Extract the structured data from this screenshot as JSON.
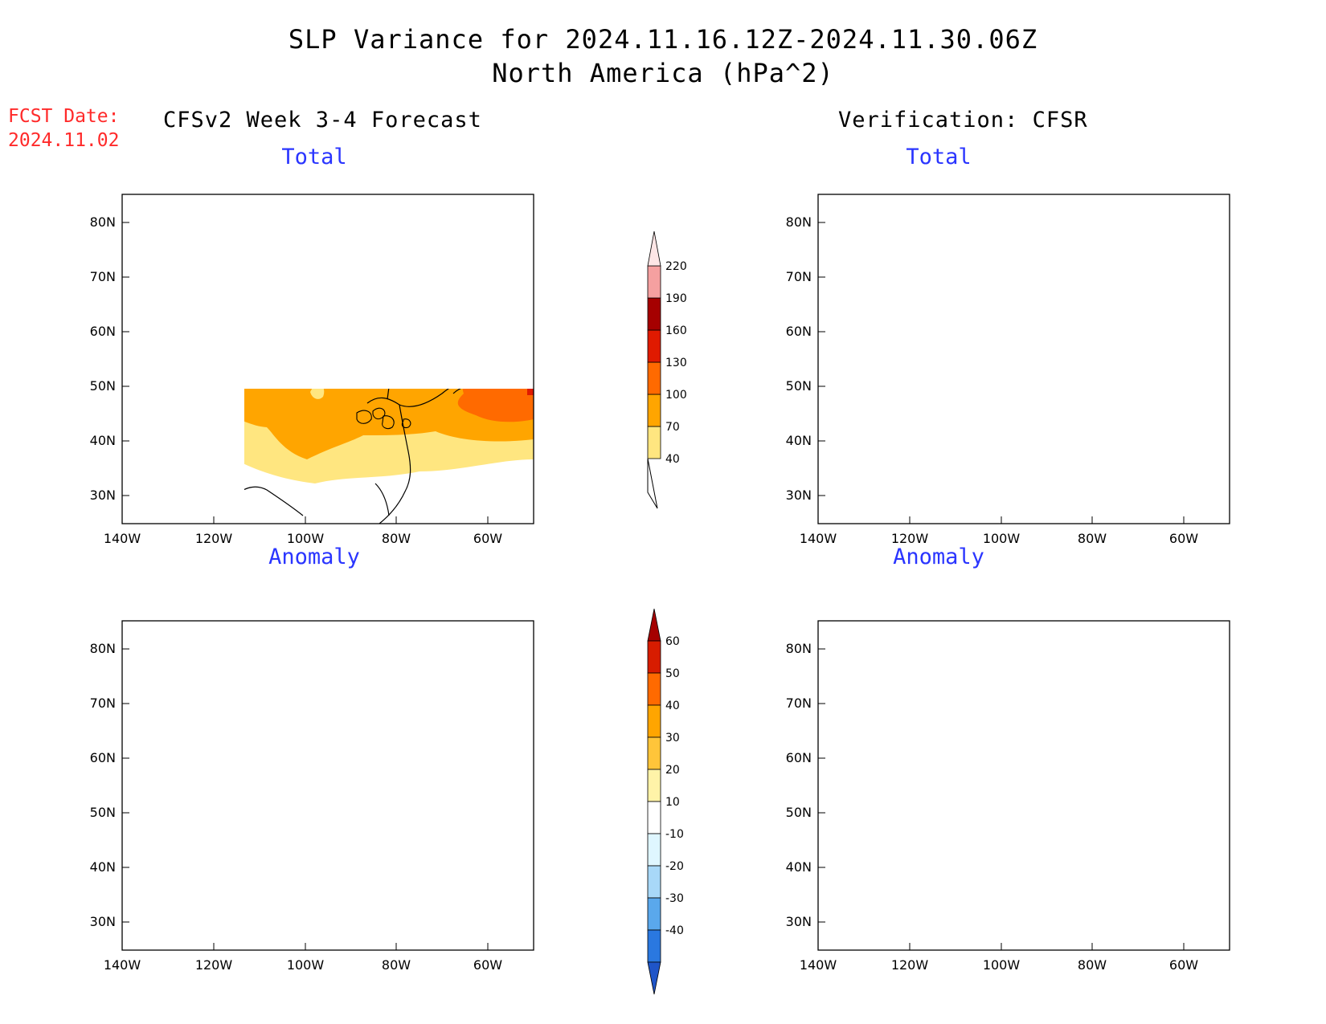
{
  "title": {
    "line1": "SLP Variance for 2024.11.16.12Z-2024.11.30.06Z",
    "line2": "North America (hPa^2)"
  },
  "fcst": {
    "label": "FCST Date:",
    "date": "2024.11.02"
  },
  "columns": {
    "left": "CFSv2 Week 3-4 Forecast",
    "right": "Verification: CFSR"
  },
  "panels": {
    "forecast_total": {
      "title": "Total"
    },
    "verification_total": {
      "title": "Total"
    },
    "forecast_anomaly": {
      "title": "Anomaly"
    },
    "verification_anomaly": {
      "title": "Anomaly"
    }
  },
  "axes": {
    "lat_labels": [
      "80N",
      "70N",
      "60N",
      "50N",
      "40N",
      "30N"
    ],
    "lat_values": [
      80,
      70,
      60,
      50,
      40,
      30
    ],
    "lon_labels": [
      "140W",
      "120W",
      "100W",
      "80W",
      "60W"
    ],
    "lon_values": [
      -140,
      -120,
      -100,
      -80,
      -60
    ],
    "lat_range": [
      25,
      85
    ],
    "lon_range": [
      -140,
      -50
    ]
  },
  "colorbars": {
    "total": {
      "levels": [
        "40",
        "70",
        "100",
        "130",
        "160",
        "190",
        "220"
      ],
      "colors": [
        "#ffffff",
        "#ffe680",
        "#ffa500",
        "#ff6a00",
        "#e01a00",
        "#a50000",
        "#f5a0a0",
        "#fde6e6"
      ]
    },
    "anomaly": {
      "levels": [
        "60",
        "50",
        "40",
        "30",
        "20",
        "10",
        "-10",
        "-20",
        "-30",
        "-40"
      ],
      "colors": [
        "#a50000",
        "#d71c00",
        "#ff6a00",
        "#ffa500",
        "#ffc53a",
        "#fff3a8",
        "#ffffff",
        "#dff6ff",
        "#a8d8f8",
        "#5aa8ec",
        "#2a78e0",
        "#1f55c8"
      ]
    }
  }
}
